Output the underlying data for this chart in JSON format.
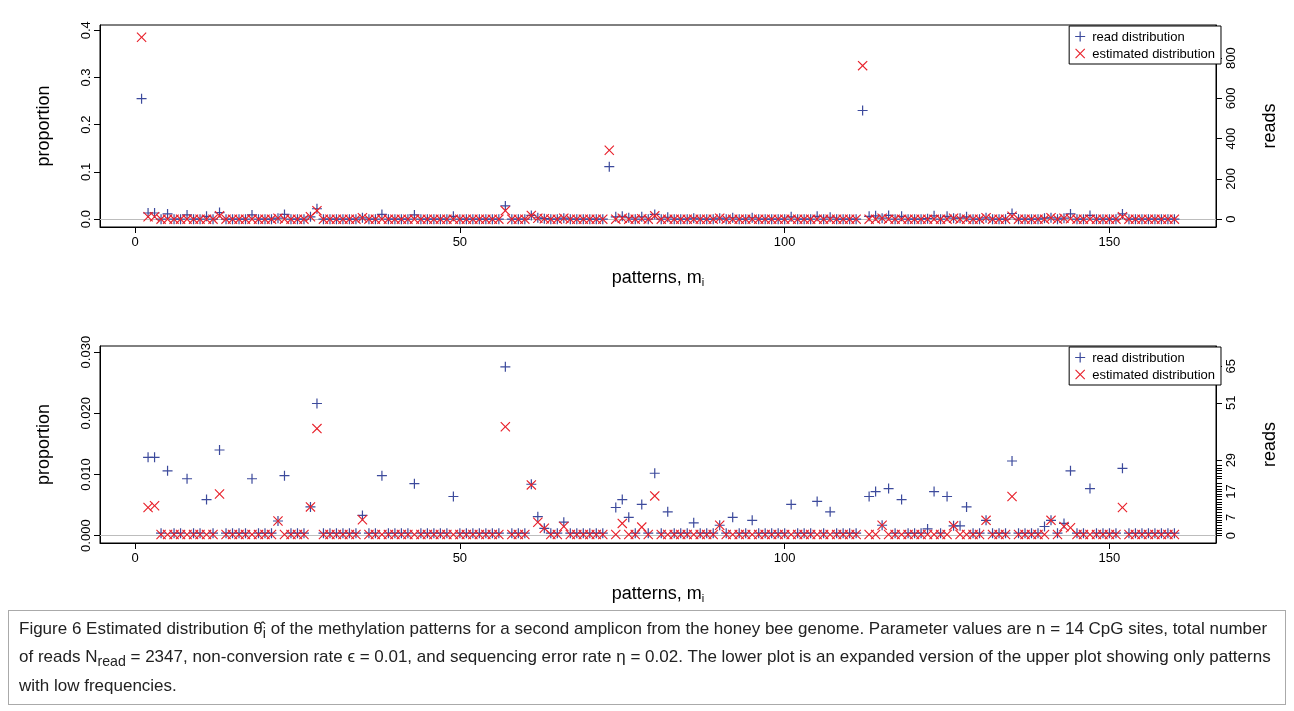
{
  "chart_data": [
    {
      "type": "scatter",
      "xlabel": "patterns, m$_{i}$",
      "ylabel": "proportion",
      "y2label": "reads",
      "legend": "top right",
      "grid": false,
      "xlim": [
        -5.4,
        166.4
      ],
      "xticks": [
        0,
        50,
        100,
        150
      ],
      "ylim": [
        -0.0166,
        0.411
      ],
      "yticks": [
        {
          "value": 0,
          "label": "0.0"
        },
        0.1,
        0.2,
        0.3,
        0.4
      ],
      "y2lim": [
        -39,
        965
      ],
      "y2ticks": [
        0,
        200,
        400,
        600,
        800
      ],
      "ref_lines": [
        {
          "axis": "y",
          "value": 0,
          "color": "#bdbdbd",
          "line_style": "solid"
        }
      ],
      "x": [
        1,
        2,
        3,
        4,
        5,
        6,
        7,
        8,
        9,
        10,
        11,
        12,
        13,
        14,
        15,
        16,
        17,
        18,
        19,
        20,
        21,
        22,
        23,
        24,
        25,
        26,
        27,
        28,
        29,
        30,
        31,
        32,
        33,
        34,
        35,
        36,
        37,
        38,
        39,
        40,
        41,
        42,
        43,
        44,
        45,
        46,
        47,
        48,
        49,
        50,
        51,
        52,
        53,
        54,
        55,
        56,
        57,
        58,
        59,
        60,
        61,
        62,
        63,
        64,
        65,
        66,
        67,
        68,
        69,
        70,
        71,
        72,
        73,
        74,
        75,
        76,
        77,
        78,
        79,
        80,
        81,
        82,
        83,
        84,
        85,
        86,
        87,
        88,
        89,
        90,
        91,
        92,
        93,
        94,
        95,
        96,
        97,
        98,
        99,
        100,
        101,
        102,
        103,
        104,
        105,
        106,
        107,
        108,
        109,
        110,
        111,
        112,
        113,
        114,
        115,
        116,
        117,
        118,
        119,
        120,
        121,
        122,
        123,
        124,
        125,
        126,
        127,
        128,
        129,
        130,
        131,
        132,
        133,
        134,
        135,
        136,
        137,
        138,
        139,
        140,
        141,
        142,
        143,
        144,
        145,
        146,
        147,
        148,
        149,
        150,
        151,
        152,
        153,
        154,
        155,
        156,
        157,
        158,
        159,
        160
      ],
      "series": [
        {
          "name": "read distribution",
          "color": "#3c4a9c",
          "marker": "cross",
          "values": [
            0.255,
            0.013,
            0.013,
            0,
            0.011,
            0,
            0,
            0.009,
            0,
            0,
            0.006,
            0,
            0.014,
            0,
            0,
            0,
            0,
            0.009,
            0,
            0,
            0,
            0.002,
            0.01,
            0,
            0,
            0,
            0.005,
            0.022,
            0,
            0,
            0,
            0,
            0,
            0,
            0.003,
            0,
            0,
            0.01,
            0,
            0,
            0,
            0,
            0.009,
            0,
            0,
            0,
            0,
            0,
            0.006,
            0,
            0,
            0,
            0,
            0,
            0,
            0,
            0.028,
            0,
            0,
            0,
            0.008,
            0.003,
            0.001,
            0,
            0,
            0.002,
            0,
            0,
            0,
            0,
            0,
            0,
            0.111,
            0.005,
            0.006,
            0.003,
            0,
            0.005,
            0,
            0.01,
            0,
            0.004,
            0,
            0,
            0,
            0.002,
            0,
            0,
            0,
            0.002,
            0,
            0.003,
            0,
            0,
            0.003,
            0,
            0,
            0,
            0,
            0,
            0.005,
            0,
            0,
            0,
            0.006,
            0,
            0.004,
            0,
            0,
            0,
            0,
            0.23,
            0.006,
            0.007,
            0.002,
            0.008,
            0,
            0.006,
            0,
            0,
            0,
            0.001,
            0.007,
            0,
            0.006,
            0.002,
            0.002,
            0.005,
            0,
            0,
            0.003,
            0,
            0,
            0,
            0.012,
            0,
            0,
            0,
            0,
            0.002,
            0.003,
            0,
            0.002,
            0.011,
            0,
            0,
            0.008,
            0,
            0,
            0,
            0,
            0.011,
            0,
            0,
            0,
            0,
            0,
            0,
            0,
            0
          ]
        },
        {
          "name": "estimated distribution",
          "color": "#e8202a",
          "marker": "x",
          "values": [
            0.385,
            0.005,
            0.005,
            0,
            0,
            0,
            0,
            0,
            0,
            0,
            0,
            0,
            0.007,
            0,
            0,
            0,
            0,
            0,
            0,
            0,
            0,
            0.002,
            0,
            0,
            0,
            0,
            0.005,
            0.018,
            0,
            0,
            0,
            0,
            0,
            0,
            0.003,
            0,
            0,
            0,
            0,
            0,
            0,
            0,
            0,
            0,
            0,
            0,
            0,
            0,
            0,
            0,
            0,
            0,
            0,
            0,
            0,
            0,
            0.018,
            0,
            0,
            0,
            0.008,
            0.002,
            0.001,
            0,
            0,
            0.002,
            0,
            0,
            0,
            0,
            0,
            0,
            0.146,
            0,
            0.002,
            0,
            0,
            0.001,
            0,
            0.007,
            0,
            0,
            0,
            0,
            0,
            0,
            0,
            0,
            0,
            0.002,
            0,
            0,
            0,
            0,
            0,
            0,
            0,
            0,
            0,
            0,
            0,
            0,
            0,
            0,
            0,
            0,
            0,
            0,
            0,
            0,
            0,
            0.325,
            0,
            0,
            0.002,
            0,
            0,
            0,
            0,
            0,
            0,
            0,
            0,
            0,
            0,
            0.002,
            0,
            0,
            0,
            0,
            0.003,
            0,
            0,
            0,
            0.006,
            0,
            0,
            0,
            0,
            0,
            0.003,
            0,
            0.002,
            0.001,
            0,
            0,
            0,
            0,
            0,
            0,
            0,
            0.005,
            0,
            0,
            0,
            0,
            0,
            0,
            0,
            0
          ]
        }
      ]
    },
    {
      "type": "scatter",
      "xlabel": "patterns, m$_{i}$",
      "ylabel": "proportion",
      "y2label": "reads",
      "legend": "top right",
      "grid": false,
      "xlim": [
        -5.4,
        166.4
      ],
      "xticks": [
        0,
        50,
        100,
        150
      ],
      "ylim": [
        -0.0012,
        0.031
      ],
      "yticks": [
        {
          "value": 0,
          "label": "0.000"
        },
        {
          "value": 0.01,
          "label": "0.010"
        },
        {
          "value": 0.02,
          "label": "0.020"
        },
        {
          "value": 0.03,
          "label": "0.030"
        }
      ],
      "y2lim": [
        -2.8,
        72.8
      ],
      "y2ticks": [
        0,
        {
          "value": 1,
          "label": null
        },
        {
          "value": 2,
          "label": null
        },
        {
          "value": 3,
          "label": null
        },
        {
          "value": 4,
          "label": null
        },
        {
          "value": 5,
          "label": null
        },
        {
          "value": 6,
          "label": null
        },
        7,
        {
          "value": 8,
          "label": null
        },
        {
          "value": 9,
          "label": null
        },
        {
          "value": 10,
          "label": null
        },
        {
          "value": 11,
          "label": null
        },
        {
          "value": 12,
          "label": null
        },
        {
          "value": 13,
          "label": null
        },
        {
          "value": 14,
          "label": null
        },
        {
          "value": 15,
          "label": null
        },
        {
          "value": 16,
          "label": null
        },
        17,
        {
          "value": 18,
          "label": null
        },
        {
          "value": 19,
          "label": null
        },
        {
          "value": 20,
          "label": null
        },
        {
          "value": 22,
          "label": null
        },
        {
          "value": 23,
          "label": null
        },
        {
          "value": 24,
          "label": null
        },
        {
          "value": 25,
          "label": null
        },
        {
          "value": 26,
          "label": null
        },
        {
          "value": 27,
          "label": null
        },
        29,
        51,
        65
      ],
      "ref_lines": [
        {
          "axis": "y",
          "value": 0,
          "color": "#bdbdbd",
          "line_style": "solid"
        }
      ],
      "annotations": [
        "Figure 6  Estimated distribution θ̂$_{i}$ of the methylation patterns for a second amplicon from the honey bee genome. Parameter values are n = 14 CpG sites, total number of reads N$_{read}$ = 2347, non-conversion rate ϵ = 0.01, and sequencing error rate η = 0.02. The lower plot is an expanded version of the upper plot showing only patterns with low frequencies."
      ],
      "x": [
        2,
        3,
        4,
        5,
        6,
        7,
        8,
        9,
        10,
        11,
        12,
        13,
        14,
        15,
        16,
        17,
        18,
        19,
        20,
        21,
        22,
        23,
        24,
        25,
        26,
        27,
        28,
        29,
        30,
        31,
        32,
        33,
        34,
        35,
        36,
        37,
        38,
        39,
        40,
        41,
        42,
        43,
        44,
        45,
        46,
        47,
        48,
        49,
        50,
        51,
        52,
        53,
        54,
        55,
        56,
        57,
        58,
        59,
        60,
        61,
        62,
        63,
        64,
        65,
        66,
        67,
        68,
        69,
        70,
        71,
        72,
        73,
        74,
        75,
        76,
        77,
        78,
        79,
        80,
        81,
        82,
        83,
        84,
        85,
        86,
        87,
        88,
        89,
        90,
        91,
        92,
        93,
        94,
        95,
        96,
        97,
        98,
        99,
        100,
        101,
        102,
        103,
        104,
        105,
        106,
        107,
        108,
        109,
        110,
        111,
        112,
        113,
        114,
        115,
        116,
        117,
        118,
        119,
        120,
        121,
        122,
        123,
        124,
        125,
        126,
        127,
        128,
        129,
        130,
        131,
        132,
        133,
        134,
        135,
        136,
        137,
        138,
        139,
        140,
        141,
        142,
        143,
        144,
        145,
        146,
        147,
        148,
        149,
        150,
        151,
        152,
        153,
        154,
        155,
        156,
        157,
        158,
        159,
        160
      ],
      "series": [
        {
          "name": "read distribution",
          "color": "#3c4a9c",
          "marker": "cross",
          "values": [
            0.0128,
            0.0128,
            0.0004,
            0.0106,
            0.0004,
            0.0004,
            0.0093,
            0.0004,
            0.0004,
            0.0059,
            0.0004,
            0.014,
            0.0004,
            0.0004,
            0.0004,
            0.0004,
            0.0093,
            0.0004,
            0.0004,
            0.0004,
            0.0024,
            0.0098,
            0.0004,
            0.0004,
            0.0004,
            0.0047,
            0.0216,
            0.0004,
            0.0004,
            0.0004,
            0.0004,
            0.0004,
            0.0004,
            0.0033,
            0.0004,
            0.0004,
            0.0098,
            0.0004,
            0.0004,
            0.0004,
            0.0004,
            0.0085,
            0.0004,
            0.0004,
            0.0004,
            0.0004,
            0.0004,
            0.0064,
            0.0004,
            0.0004,
            0.0004,
            0.0004,
            0.0004,
            0.0004,
            0.0004,
            0.0276,
            0.0004,
            0.0004,
            0.0004,
            0.0084,
            0.0031,
            0.0012,
            0.0004,
            0.0004,
            0.0022,
            0.0004,
            0.0004,
            0.0004,
            0.0004,
            0.0004,
            0.0004,
            null,
            0.0046,
            0.0059,
            0.003,
            0.0004,
            0.0051,
            0.0004,
            0.0102,
            0.0004,
            0.0039,
            0.0004,
            0.0004,
            0.0004,
            0.0021,
            0.0004,
            0.0004,
            0.0004,
            0.0017,
            0.0004,
            0.003,
            0.0004,
            0.0004,
            0.0025,
            0.0004,
            0.0004,
            0.0004,
            0.0004,
            0.0004,
            0.0051,
            0.0004,
            0.0004,
            0.0004,
            0.0056,
            0.0004,
            0.0039,
            0.0004,
            0.0004,
            0.0004,
            0.0004,
            null,
            0.0064,
            0.0072,
            0.0017,
            0.0077,
            0.0004,
            0.0059,
            0.0004,
            0.0004,
            0.0004,
            0.0011,
            0.0072,
            0.0004,
            0.0064,
            0.0016,
            0.0016,
            0.0047,
            0.0004,
            0.0004,
            0.0025,
            0.0004,
            0.0004,
            0.0004,
            0.0122,
            0.0004,
            0.0004,
            0.0004,
            0.0004,
            0.0015,
            0.0025,
            0.0004,
            0.002,
            0.0106,
            0.0004,
            0.0004,
            0.0077,
            0.0004,
            0.0004,
            0.0004,
            0.0004,
            0.011,
            0.0004,
            0.0004,
            0.0004,
            0.0004,
            0.0004,
            0.0004,
            0.0004,
            0.0004
          ]
        },
        {
          "name": "estimated distribution",
          "color": "#e8202a",
          "marker": "x",
          "values": [
            0.0046,
            0.0049,
            0.0002,
            0.0002,
            0.0002,
            0.0002,
            0.0002,
            0.0002,
            0.0002,
            0.0002,
            0.0002,
            0.0068,
            0.0002,
            0.0002,
            0.0002,
            0.0002,
            0.0002,
            0.0002,
            0.0002,
            0.0002,
            0.0024,
            0.0002,
            0.0002,
            0.0002,
            0.0002,
            0.0047,
            0.0175,
            0.0002,
            0.0002,
            0.0002,
            0.0002,
            0.0002,
            0.0002,
            0.0026,
            0.0002,
            0.0002,
            0.0002,
            0.0002,
            0.0002,
            0.0002,
            0.0002,
            0.0002,
            0.0002,
            0.0002,
            0.0002,
            0.0002,
            0.0002,
            0.0002,
            0.0002,
            0.0002,
            0.0002,
            0.0002,
            0.0002,
            0.0002,
            0.0002,
            0.0178,
            0.0002,
            0.0002,
            0.0002,
            0.0083,
            0.0022,
            0.0012,
            0.0002,
            0.0002,
            0.0015,
            0.0002,
            0.0002,
            0.0002,
            0.0002,
            0.0002,
            0.0002,
            null,
            0.0002,
            0.002,
            0.0002,
            0.0002,
            0.0014,
            0.0002,
            0.0065,
            0.0002,
            0.0002,
            0.0002,
            0.0002,
            0.0002,
            0.0002,
            0.0002,
            0.0002,
            0.0002,
            0.0017,
            0.0002,
            0.0002,
            0.0002,
            0.0002,
            0.0002,
            0.0002,
            0.0002,
            0.0002,
            0.0002,
            0.0002,
            0.0002,
            0.0002,
            0.0002,
            0.0002,
            0.0002,
            0.0002,
            0.0002,
            0.0002,
            0.0002,
            0.0002,
            0.0002,
            null,
            0.0002,
            0.0002,
            0.0017,
            0.0002,
            0.0002,
            0.0002,
            0.0002,
            0.0002,
            0.0002,
            0.0002,
            0.0002,
            0.0002,
            0.0002,
            0.0016,
            0.0002,
            0.0002,
            0.0002,
            0.0002,
            0.0025,
            0.0002,
            0.0002,
            0.0002,
            0.0064,
            0.0002,
            0.0002,
            0.0002,
            0.0002,
            0.0002,
            0.0025,
            0.0002,
            0.0015,
            0.0013,
            0.0002,
            0.0002,
            0.0002,
            0.0002,
            0.0002,
            0.0002,
            0.0002,
            0.0046,
            0.0002,
            0.0002,
            0.0002,
            0.0002,
            0.0002,
            0.0002,
            0.0002,
            0.0002
          ]
        }
      ]
    }
  ]
}
